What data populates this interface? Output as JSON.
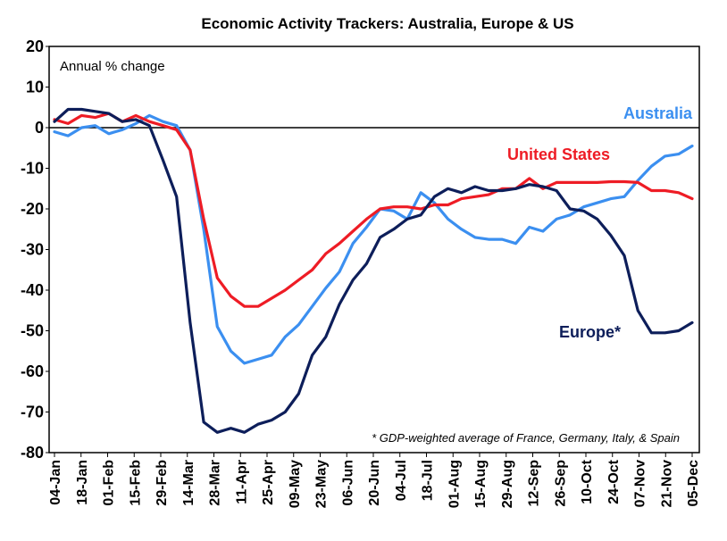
{
  "chart_data": {
    "type": "line",
    "title": "Economic Activity Trackers: Australia, Europe & US",
    "ylabel": "Annual % change",
    "ylim": [
      -80,
      20
    ],
    "yticks": [
      20,
      10,
      0,
      -10,
      -20,
      -30,
      -40,
      -50,
      -60,
      -70,
      -80
    ],
    "x_ticks": [
      "04-Jan",
      "18-Jan",
      "01-Feb",
      "15-Feb",
      "29-Feb",
      "14-Mar",
      "28-Mar",
      "11-Apr",
      "25-Apr",
      "09-May",
      "23-May",
      "06-Jun",
      "20-Jun",
      "04-Jul",
      "18-Jul",
      "01-Aug",
      "15-Aug",
      "29-Aug",
      "12-Sep",
      "26-Sep",
      "10-Oct",
      "24-Oct",
      "07-Nov",
      "21-Nov",
      "05-Dec"
    ],
    "x": [
      "04-Jan",
      "11-Jan",
      "18-Jan",
      "25-Jan",
      "01-Feb",
      "08-Feb",
      "15-Feb",
      "22-Feb",
      "29-Feb",
      "07-Mar",
      "14-Mar",
      "21-Mar",
      "28-Mar",
      "04-Apr",
      "11-Apr",
      "18-Apr",
      "25-Apr",
      "02-May",
      "09-May",
      "16-May",
      "23-May",
      "30-May",
      "06-Jun",
      "13-Jun",
      "20-Jun",
      "27-Jun",
      "04-Jul",
      "11-Jul",
      "18-Jul",
      "25-Jul",
      "01-Aug",
      "08-Aug",
      "15-Aug",
      "22-Aug",
      "29-Aug",
      "05-Sep",
      "12-Sep",
      "19-Sep",
      "26-Sep",
      "03-Oct",
      "10-Oct",
      "17-Oct",
      "24-Oct",
      "31-Oct",
      "07-Nov",
      "14-Nov",
      "21-Nov",
      "28-Nov"
    ],
    "series": [
      {
        "name": "Australia",
        "color": "#3b8ff0",
        "values": [
          -1,
          -2,
          0,
          0.5,
          -1.5,
          -0.5,
          1,
          3,
          1.5,
          0.5,
          -5.5,
          -25,
          -49,
          -55,
          -58,
          -57,
          -56,
          -51.5,
          -48.5,
          -44,
          -39.5,
          -35.5,
          -28.5,
          -24.5,
          -20,
          -20.5,
          -22.5,
          -16,
          -18.5,
          -22.5,
          -25,
          -27,
          -27.5,
          -27.5,
          -28.5,
          -24.5,
          -25.5,
          -22.5,
          -21.5,
          -19.5,
          -18.5,
          -17.5,
          -17,
          -13,
          -9.5,
          -7,
          -6.5,
          -4.5
        ]
      },
      {
        "name": "United States",
        "color": "#ee1c25",
        "values": [
          2,
          1,
          3,
          2.5,
          3.5,
          1.5,
          3,
          1.5,
          0.5,
          -0.5,
          -5.5,
          -22.5,
          -37,
          -41.5,
          -44,
          -44,
          -42,
          -40,
          -37.5,
          -35,
          -31,
          -28.5,
          -25.5,
          -22.5,
          -20,
          -19.5,
          -19.5,
          -20,
          -19,
          -19,
          -17.5,
          -17,
          -16.5,
          -15,
          -15,
          -12.5,
          -15,
          -13.5,
          -13.5,
          -13.5,
          -13.5,
          -13.3,
          -13.3,
          -13.5,
          -15.5,
          -15.5,
          -16,
          -17.5
        ]
      },
      {
        "name": "Europe*",
        "color": "#0d1e5a",
        "values": [
          1.5,
          4.5,
          4.5,
          4,
          3.5,
          1.5,
          2,
          0.5,
          -8,
          -17,
          -48,
          -72.5,
          -75,
          -74,
          -75,
          -73,
          -72,
          -70,
          -65.5,
          -56,
          -51.5,
          -43.5,
          -37.5,
          -33.5,
          -27,
          -25,
          -22.5,
          -21.5,
          -17,
          -15,
          -16,
          -14.5,
          -15.5,
          -15.5,
          -15,
          -14,
          -14.5,
          -15.5,
          -20,
          -20.5,
          -22.5,
          -26.5,
          -31.5,
          -45,
          -50.5,
          -50.5,
          -50,
          -48
        ]
      }
    ],
    "annotations": [
      "* GDP-weighted average of France, Germany, Italy, & Spain"
    ],
    "legend": "inline labels near series ends",
    "grid": false
  }
}
